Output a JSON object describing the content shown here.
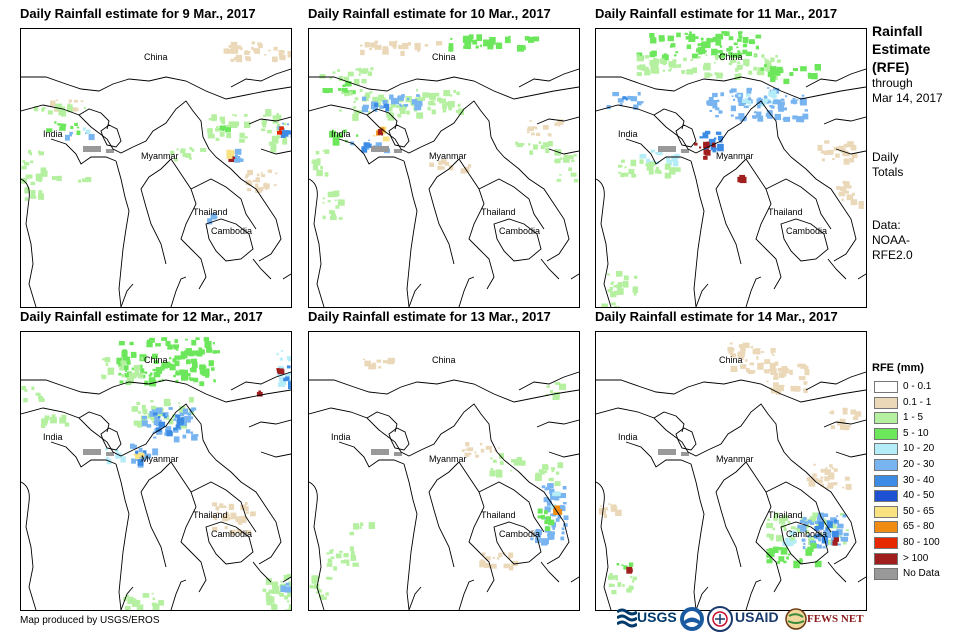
{
  "panels": [
    {
      "title": "Daily Rainfall estimate for 9 Mar., 2017",
      "labels": [
        "China",
        "India",
        "Myanmar",
        "Thailand",
        "Cambodia"
      ]
    },
    {
      "title": "Daily Rainfall estimate for 10 Mar., 2017",
      "labels": [
        "China",
        "India",
        "Myanmar",
        "Thailand",
        "Cambodia"
      ]
    },
    {
      "title": "Daily Rainfall estimate for 11 Mar., 2017",
      "labels": [
        "China",
        "India",
        "Myanmar",
        "Thailand",
        "Cambodia"
      ]
    },
    {
      "title": "Daily Rainfall estimate for 12 Mar., 2017",
      "labels": [
        "China",
        "India",
        "Myanmar",
        "Thailand",
        "Cambodia"
      ]
    },
    {
      "title": "Daily Rainfall estimate for 13 Mar., 2017",
      "labels": [
        "China",
        "India",
        "Myanmar",
        "Thailand",
        "Cambodia"
      ]
    },
    {
      "title": "Daily Rainfall estimate for 14 Mar., 2017",
      "labels": [
        "China",
        "India",
        "Myanmar",
        "Thailand",
        "Cambodia"
      ]
    }
  ],
  "side": {
    "heading": [
      "Rainfall",
      "Estimate",
      "(RFE)"
    ],
    "through": "through",
    "date": "Mar 14, 2017",
    "daily": "Daily",
    "totals": "Totals",
    "data_label": "Data:",
    "data_src1": "NOAA-",
    "data_src2": "RFE2.0"
  },
  "legend": {
    "title": "RFE (mm)",
    "items": [
      {
        "label": "0 - 0.1",
        "color": "#ffffff"
      },
      {
        "label": "0.1 - 1",
        "color": "#ead8b8"
      },
      {
        "label": "1 - 5",
        "color": "#b4f0a0"
      },
      {
        "label": "5 - 10",
        "color": "#6ce65a"
      },
      {
        "label": "10 - 20",
        "color": "#b4ecf8"
      },
      {
        "label": "20 - 30",
        "color": "#78b4f0"
      },
      {
        "label": "30 - 40",
        "color": "#3c8ce6"
      },
      {
        "label": "40 - 50",
        "color": "#1e50d2"
      },
      {
        "label": "50 - 65",
        "color": "#f8e282"
      },
      {
        "label": "65 - 80",
        "color": "#f08c14"
      },
      {
        "label": "80 - 100",
        "color": "#e62800"
      },
      {
        "label": "> 100",
        "color": "#a01e1e"
      },
      {
        "label": "No Data",
        "color": "#999999"
      }
    ]
  },
  "credit": "Map produced by USGS/EROS",
  "logos": {
    "usgs": "USGS",
    "usaid": "USAID",
    "fewsnet": "FEWS NET"
  }
}
